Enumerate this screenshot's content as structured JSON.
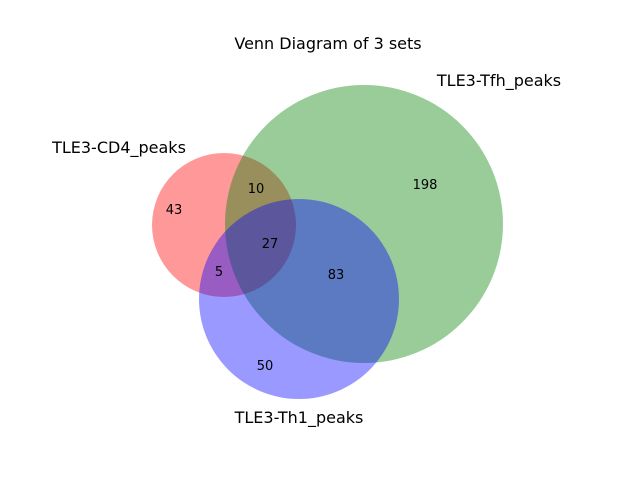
{
  "title": "Venn Diagram of 3 sets",
  "sets": [
    {
      "id": "cd4",
      "label": "TLE3-CD4_peaks",
      "color": "#ff0000"
    },
    {
      "id": "tfh",
      "label": "TLE3-Tfh_peaks",
      "color": "#008000"
    },
    {
      "id": "th1",
      "label": "TLE3-Th1_peaks",
      "color": "#0000ff"
    }
  ],
  "regions": {
    "cd4_only": "43",
    "tfh_only": "198",
    "th1_only": "50",
    "cd4_tfh": "10",
    "cd4_th1": "5",
    "tfh_th1": "83",
    "all_three": "27"
  },
  "fill_opacity": 0.4
}
